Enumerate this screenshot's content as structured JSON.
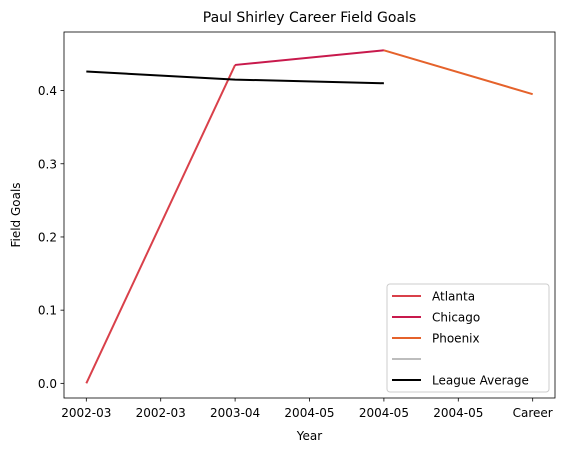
{
  "chart_data": {
    "type": "line",
    "title": "Paul Shirley Career Field Goals",
    "xlabel": "Year",
    "ylabel": "Field Goals",
    "x_ticks": [
      "2002-03",
      "2002-03",
      "2003-04",
      "2004-05",
      "2004-05",
      "2004-05",
      "Career"
    ],
    "y_ticks": [
      "0.0",
      "0.1",
      "0.2",
      "0.3",
      "0.4"
    ],
    "ylim": [
      -0.02,
      0.48
    ],
    "xlim": [
      -0.3,
      6.3
    ],
    "grid": false,
    "legend_position": "bottom-right",
    "series": [
      {
        "name": "Atlanta",
        "color": "#d9404a",
        "x": [
          0,
          2
        ],
        "y": [
          0.0,
          0.435
        ]
      },
      {
        "name": "Chicago",
        "color": "#c8194c",
        "x": [
          2,
          4
        ],
        "y": [
          0.435,
          0.455
        ]
      },
      {
        "name": "Phoenix",
        "color": "#e5622b",
        "x": [
          4,
          6
        ],
        "y": [
          0.455,
          0.395
        ]
      },
      {
        "name": "",
        "color": "#bdbdbd",
        "x": [],
        "y": []
      },
      {
        "name": "League Average",
        "color": "#000000",
        "x": [
          0,
          2,
          4
        ],
        "y": [
          0.426,
          0.415,
          0.41
        ]
      }
    ]
  }
}
